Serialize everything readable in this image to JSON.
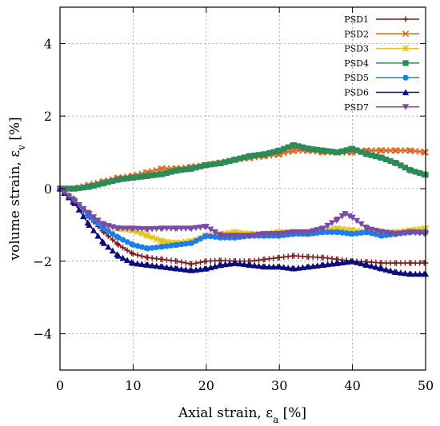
{
  "chart_data": {
    "type": "line",
    "title": "",
    "xlabel_main": "Axial strain, ε",
    "xlabel_sub": "a",
    "xlabel_unit": " [%]",
    "ylabel_main": "volume strain, ε",
    "ylabel_sub": "v",
    "ylabel_unit": " [%]",
    "xlim": [
      0,
      50
    ],
    "ylim": [
      -5,
      5
    ],
    "xticks": [
      0,
      10,
      20,
      30,
      40,
      50
    ],
    "yticks": [
      -4,
      -2,
      0,
      2,
      4
    ],
    "grid": true,
    "legend_position": "top-right",
    "series": [
      {
        "name": "PSD1",
        "color": "#7b1a1a",
        "marker": "plus",
        "x": [
          0,
          2,
          4,
          6,
          8,
          10,
          12,
          14,
          16,
          18,
          20,
          22,
          24,
          26,
          28,
          30,
          32,
          34,
          36,
          38,
          40,
          42,
          44,
          46,
          48,
          50
        ],
        "y": [
          0,
          -0.3,
          -0.8,
          -1.2,
          -1.55,
          -1.8,
          -1.9,
          -1.95,
          -2.0,
          -2.08,
          -2.0,
          -1.98,
          -2.0,
          -2.0,
          -1.95,
          -1.9,
          -1.85,
          -1.88,
          -1.9,
          -1.95,
          -2.0,
          -2.02,
          -2.05,
          -2.05,
          -2.05,
          -2.05
        ]
      },
      {
        "name": "PSD2",
        "color": "#d9661a",
        "marker": "cross",
        "x": [
          0,
          2,
          4,
          6,
          8,
          10,
          12,
          14,
          16,
          18,
          20,
          22,
          24,
          26,
          28,
          30,
          32,
          34,
          36,
          38,
          40,
          42,
          44,
          46,
          48,
          50
        ],
        "y": [
          0,
          0.0,
          0.1,
          0.2,
          0.3,
          0.35,
          0.45,
          0.55,
          0.55,
          0.6,
          0.65,
          0.72,
          0.8,
          0.85,
          0.9,
          0.95,
          1.05,
          1.05,
          1.0,
          1.0,
          1.0,
          1.05,
          1.05,
          1.05,
          1.05,
          1.0
        ]
      },
      {
        "name": "PSD3",
        "color": "#e6c21a",
        "marker": "star",
        "x": [
          0,
          2,
          4,
          6,
          8,
          10,
          12,
          14,
          16,
          18,
          20,
          22,
          24,
          26,
          28,
          30,
          32,
          34,
          36,
          38,
          40,
          42,
          44,
          46,
          48,
          50
        ],
        "y": [
          0,
          -0.35,
          -0.7,
          -1.0,
          -1.1,
          -1.15,
          -1.3,
          -1.45,
          -1.5,
          -1.45,
          -1.3,
          -1.25,
          -1.2,
          -1.25,
          -1.25,
          -1.2,
          -1.2,
          -1.25,
          -1.15,
          -1.1,
          -1.15,
          -1.2,
          -1.2,
          -1.2,
          -1.15,
          -1.1
        ]
      },
      {
        "name": "PSD4",
        "color": "#2e8b57",
        "marker": "square",
        "x": [
          0,
          2,
          4,
          6,
          8,
          10,
          12,
          14,
          16,
          18,
          20,
          22,
          24,
          26,
          28,
          30,
          32,
          34,
          36,
          38,
          40,
          42,
          44,
          46,
          48,
          50
        ],
        "y": [
          0,
          0.0,
          0.05,
          0.15,
          0.25,
          0.3,
          0.35,
          0.4,
          0.5,
          0.55,
          0.65,
          0.7,
          0.8,
          0.9,
          0.95,
          1.05,
          1.2,
          1.1,
          1.05,
          1.0,
          1.1,
          0.95,
          0.85,
          0.7,
          0.5,
          0.38
        ]
      },
      {
        "name": "PSD5",
        "color": "#1a7fe6",
        "marker": "circle",
        "x": [
          0,
          2,
          4,
          6,
          8,
          10,
          12,
          14,
          16,
          18,
          20,
          22,
          24,
          26,
          28,
          30,
          32,
          34,
          36,
          38,
          40,
          42,
          44,
          46,
          48,
          50
        ],
        "y": [
          0,
          -0.35,
          -0.75,
          -1.1,
          -1.35,
          -1.55,
          -1.65,
          -1.6,
          -1.55,
          -1.5,
          -1.3,
          -1.35,
          -1.35,
          -1.3,
          -1.3,
          -1.3,
          -1.25,
          -1.25,
          -1.2,
          -1.2,
          -1.25,
          -1.2,
          -1.3,
          -1.25,
          -1.2,
          -1.2
        ]
      },
      {
        "name": "PSD6",
        "color": "#0c0c7a",
        "marker": "triangle",
        "x": [
          0,
          2,
          4,
          6,
          8,
          10,
          12,
          14,
          16,
          18,
          20,
          22,
          24,
          26,
          28,
          30,
          32,
          34,
          36,
          38,
          40,
          42,
          44,
          46,
          48,
          50
        ],
        "y": [
          0,
          -0.4,
          -1.0,
          -1.5,
          -1.85,
          -2.05,
          -2.1,
          -2.15,
          -2.2,
          -2.25,
          -2.2,
          -2.1,
          -2.05,
          -2.1,
          -2.15,
          -2.15,
          -2.2,
          -2.15,
          -2.1,
          -2.05,
          -2.0,
          -2.1,
          -2.2,
          -2.3,
          -2.35,
          -2.35
        ]
      },
      {
        "name": "PSD7",
        "color": "#7b4aa8",
        "marker": "triangle-down",
        "x": [
          0,
          2,
          4,
          6,
          8,
          10,
          12,
          14,
          16,
          18,
          20,
          22,
          24,
          26,
          28,
          30,
          32,
          34,
          36,
          38,
          39,
          40,
          42,
          44,
          46,
          48,
          50
        ],
        "y": [
          0,
          -0.35,
          -0.7,
          -1.0,
          -1.1,
          -1.1,
          -1.12,
          -1.1,
          -1.1,
          -1.1,
          -1.05,
          -1.3,
          -1.3,
          -1.3,
          -1.25,
          -1.25,
          -1.2,
          -1.2,
          -1.1,
          -0.85,
          -0.7,
          -0.8,
          -1.1,
          -1.2,
          -1.25,
          -1.2,
          -1.25
        ]
      }
    ]
  }
}
